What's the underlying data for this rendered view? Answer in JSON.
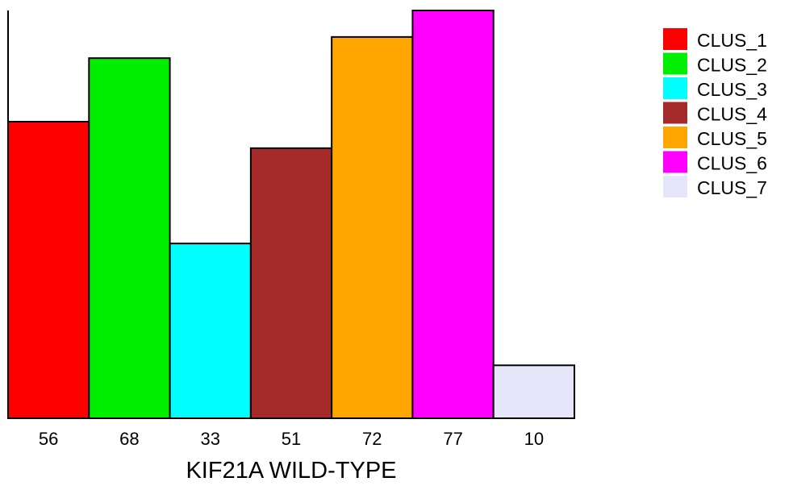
{
  "chart_data": {
    "type": "bar",
    "xlabel": "KIF21A WILD-TYPE",
    "ylabel": "",
    "title": "",
    "categories": [
      "CLUS_1",
      "CLUS_2",
      "CLUS_3",
      "CLUS_4",
      "CLUS_5",
      "CLUS_6",
      "CLUS_7"
    ],
    "values": [
      56,
      68,
      33,
      51,
      72,
      77,
      10
    ],
    "tick_labels": [
      "56",
      "68",
      "33",
      "51",
      "72",
      "77",
      "10"
    ],
    "colors": [
      "#ff0000",
      "#00ee00",
      "#00ffff",
      "#a52a2a",
      "#ffa500",
      "#ff00ff",
      "#e6e6fa"
    ],
    "ylim": [
      0,
      77
    ],
    "grid": false,
    "legend": {
      "placement": "right",
      "entries": [
        "CLUS_1",
        "CLUS_2",
        "CLUS_3",
        "CLUS_4",
        "CLUS_5",
        "CLUS_6",
        "CLUS_7"
      ]
    }
  }
}
